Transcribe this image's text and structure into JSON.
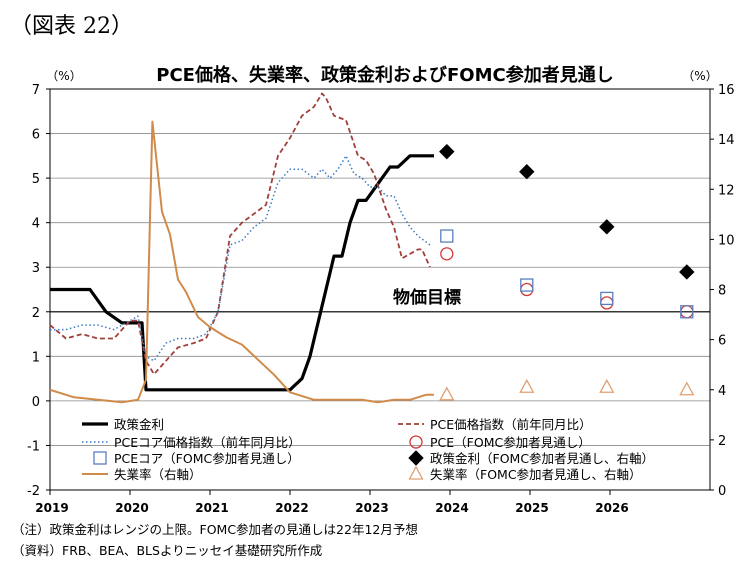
{
  "figure_label": "（図表 22）",
  "chart_data": {
    "type": "line",
    "title": "PCE価格、失業率、政策金利およびFOMC参加者見通し",
    "left_axis": {
      "unit": "（%）",
      "ylim": [
        -2,
        7
      ],
      "ticks": [
        -2,
        -1,
        0,
        1,
        2,
        3,
        4,
        5,
        6,
        7
      ]
    },
    "right_axis": {
      "unit": "（%）",
      "ylim": [
        0,
        16
      ],
      "ticks": [
        0,
        2,
        4,
        6,
        8,
        10,
        12,
        14,
        16
      ]
    },
    "xlim": [
      2019,
      2027.25
    ],
    "x_ticks": [
      "2019",
      "2020",
      "2021",
      "2022",
      "2023",
      "2024",
      "2025",
      "2026"
    ],
    "grid": true,
    "target_line": {
      "value": 2,
      "label": "物価目標"
    },
    "series": [
      {
        "name": "政策金利",
        "axis": "left",
        "color": "#000000",
        "style": "solid-thick",
        "x": [
          2019.0,
          2019.5,
          2019.7,
          2019.9,
          2020.15,
          2020.2,
          2020.3,
          2021.5,
          2022.0,
          2022.15,
          2022.25,
          2022.35,
          2022.45,
          2022.55,
          2022.65,
          2022.75,
          2022.85,
          2022.95,
          2023.05,
          2023.15,
          2023.25,
          2023.35,
          2023.5,
          2023.8
        ],
        "y": [
          2.5,
          2.5,
          2.0,
          1.75,
          1.75,
          0.25,
          0.25,
          0.25,
          0.25,
          0.5,
          1.0,
          1.75,
          2.5,
          3.25,
          3.25,
          4.0,
          4.5,
          4.5,
          4.75,
          5.0,
          5.25,
          5.25,
          5.5,
          5.5
        ]
      },
      {
        "name": "PCE価格指数（前年同月比）",
        "axis": "left",
        "color": "#a0403a",
        "style": "dashed",
        "x": [
          2019.0,
          2019.2,
          2019.4,
          2019.6,
          2019.8,
          2020.0,
          2020.1,
          2020.2,
          2020.3,
          2020.45,
          2020.6,
          2020.8,
          2020.95,
          2021.1,
          2021.25,
          2021.4,
          2021.55,
          2021.7,
          2021.85,
          2022.0,
          2022.15,
          2022.3,
          2022.4,
          2022.45,
          2022.55,
          2022.7,
          2022.85,
          2022.95,
          2023.05,
          2023.2,
          2023.3,
          2023.4,
          2023.5,
          2023.6,
          2023.65,
          2023.75
        ],
        "y": [
          1.7,
          1.4,
          1.5,
          1.4,
          1.4,
          1.8,
          1.8,
          0.9,
          0.6,
          0.9,
          1.2,
          1.3,
          1.4,
          2.0,
          3.7,
          4.0,
          4.2,
          4.4,
          5.5,
          5.9,
          6.4,
          6.6,
          6.9,
          6.8,
          6.4,
          6.3,
          5.5,
          5.4,
          5.1,
          4.3,
          3.9,
          3.2,
          3.3,
          3.4,
          3.4,
          3.0
        ]
      },
      {
        "name": "PCEコア価格指数（前年同月比）",
        "axis": "left",
        "color": "#3a7abf",
        "style": "dotted",
        "x": [
          2019.0,
          2019.2,
          2019.4,
          2019.6,
          2019.8,
          2020.0,
          2020.1,
          2020.2,
          2020.3,
          2020.45,
          2020.6,
          2020.8,
          2020.95,
          2021.1,
          2021.25,
          2021.4,
          2021.55,
          2021.7,
          2021.85,
          2022.0,
          2022.15,
          2022.3,
          2022.4,
          2022.5,
          2022.6,
          2022.7,
          2022.8,
          2022.9,
          2023.0,
          2023.1,
          2023.2,
          2023.3,
          2023.4,
          2023.5,
          2023.6,
          2023.75
        ],
        "y": [
          1.6,
          1.6,
          1.7,
          1.7,
          1.6,
          1.8,
          1.9,
          1.0,
          0.9,
          1.3,
          1.4,
          1.4,
          1.5,
          2.0,
          3.5,
          3.6,
          3.9,
          4.1,
          4.9,
          5.2,
          5.2,
          5.0,
          5.2,
          5.0,
          5.2,
          5.5,
          5.1,
          5.0,
          4.8,
          4.8,
          4.6,
          4.6,
          4.2,
          3.9,
          3.7,
          3.5
        ]
      },
      {
        "name": "失業率（右軸）",
        "axis": "right",
        "color": "#d08a4a",
        "style": "solid",
        "x": [
          2019.0,
          2019.3,
          2019.6,
          2019.9,
          2020.1,
          2020.2,
          2020.28,
          2020.33,
          2020.4,
          2020.5,
          2020.6,
          2020.7,
          2020.85,
          2021.0,
          2021.2,
          2021.4,
          2021.6,
          2021.8,
          2022.0,
          2022.3,
          2022.6,
          2022.9,
          2023.1,
          2023.3,
          2023.5,
          2023.7,
          2023.8
        ],
        "y": [
          4.0,
          3.7,
          3.6,
          3.5,
          3.6,
          4.4,
          14.7,
          13.2,
          11.1,
          10.2,
          8.4,
          7.9,
          6.9,
          6.5,
          6.1,
          5.8,
          5.2,
          4.6,
          3.9,
          3.6,
          3.6,
          3.6,
          3.5,
          3.6,
          3.6,
          3.8,
          3.8
        ]
      }
    ],
    "projection_series": [
      {
        "name": "PCE（FOMC参加者見通し）",
        "axis": "left",
        "marker": "circle",
        "color": "#d23a3a",
        "x": [
          2023.96,
          2024.96,
          2025.96,
          2026.96
        ],
        "y": [
          3.3,
          2.5,
          2.2,
          2.0
        ]
      },
      {
        "name": "PCEコア（FOMC参加者見通し）",
        "axis": "left",
        "marker": "square",
        "color": "#5a7fc0",
        "x": [
          2023.96,
          2024.96,
          2025.96,
          2026.96
        ],
        "y": [
          3.7,
          2.6,
          2.3,
          2.0
        ]
      },
      {
        "name": "政策金利（FOMC参加者見通し、右軸）",
        "axis": "right",
        "marker": "diamond",
        "color": "#000000",
        "x": [
          2023.96,
          2024.96,
          2025.96,
          2026.96
        ],
        "y": [
          13.5,
          12.7,
          10.5,
          8.7
        ]
      },
      {
        "name": "失業率（FOMC参加者見通し、右軸）",
        "axis": "right",
        "marker": "triangle",
        "color": "#e0a070",
        "x": [
          2023.96,
          2024.96,
          2025.96,
          2026.96
        ],
        "y": [
          3.8,
          4.1,
          4.1,
          4.0
        ]
      }
    ]
  },
  "notes": {
    "note": "（注）政策金利はレンジの上限。FOMC参加者の見通しは22年12月予想",
    "source": "（資料）FRB、BEA、BLSよりニッセイ基礎研究所作成"
  }
}
